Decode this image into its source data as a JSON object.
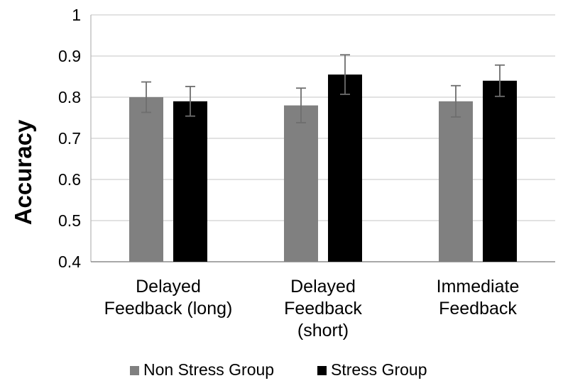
{
  "chart_data": {
    "type": "bar",
    "title": "",
    "xlabel": "",
    "ylabel": "Accuracy",
    "ylim": [
      0.4,
      1.0
    ],
    "yticks": [
      "0.4",
      "0.5",
      "0.6",
      "0.7",
      "0.8",
      "0.9",
      "1"
    ],
    "ytick_values": [
      0.4,
      0.5,
      0.6,
      0.7,
      0.8,
      0.9,
      1.0
    ],
    "grid": true,
    "legend_position": "bottom",
    "categories": [
      [
        "Delayed",
        "Feedback (long)"
      ],
      [
        "Delayed",
        "Feedback",
        "(short)"
      ],
      [
        "Immediate",
        "Feedback"
      ]
    ],
    "series": [
      {
        "name": "Non Stress Group",
        "color": "#808080",
        "values": [
          0.8,
          0.78,
          0.79
        ],
        "error": [
          0.037,
          0.042,
          0.038
        ]
      },
      {
        "name": "Stress Group",
        "color": "#000000",
        "values": [
          0.79,
          0.855,
          0.84
        ],
        "error": [
          0.036,
          0.048,
          0.038
        ]
      }
    ]
  }
}
